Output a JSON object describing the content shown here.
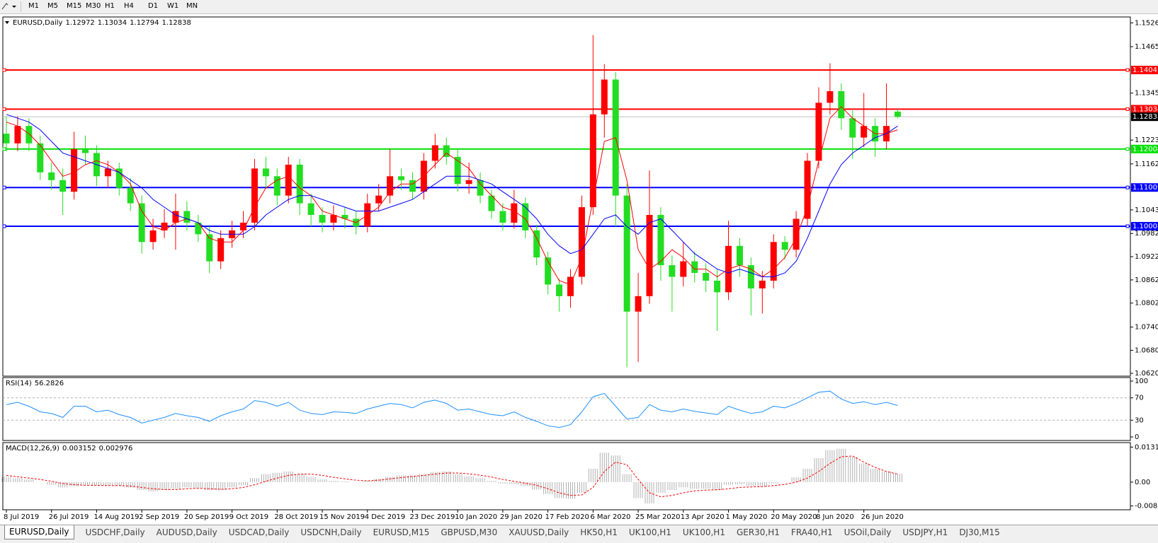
{
  "toolbar": {
    "timeframes": [
      "M1",
      "M5",
      "M15",
      "M30",
      "H1",
      "H4",
      "D1",
      "W1",
      "MN"
    ]
  },
  "chart_data": [
    {
      "type": "candlestick",
      "title": "EURUSD,Daily",
      "categories": [
        "8 Jul 2019",
        null,
        null,
        null,
        "26 Jul 2019",
        null,
        null,
        null,
        "14 Aug 2019",
        null,
        null,
        null,
        "2 Sep 2019",
        null,
        null,
        null,
        "20 Sep 2019",
        null,
        null,
        null,
        "9 Oct 2019",
        null,
        null,
        null,
        "28 Oct 2019",
        null,
        null,
        null,
        "15 Nov 2019",
        null,
        null,
        null,
        "4 Dec 2019",
        null,
        null,
        null,
        "23 Dec 2019",
        null,
        null,
        null,
        "10 Jan 2020",
        null,
        null,
        null,
        "29 Jan 2020",
        null,
        null,
        null,
        "17 Feb 2020",
        null,
        null,
        null,
        "6 Mar 2020",
        null,
        null,
        null,
        "25 Mar 2020",
        null,
        null,
        null,
        "13 Apr 2020",
        null,
        null,
        null,
        "1 May 2020",
        null,
        null,
        null,
        "20 May 2020",
        null,
        null,
        null,
        "8 Jun 2020",
        null,
        null,
        null,
        "26 Jun 2020",
        null,
        null,
        null
      ],
      "open": [
        1.124,
        1.1215,
        1.126,
        1.1215,
        1.114,
        1.112,
        1.109,
        1.12,
        1.119,
        1.113,
        1.115,
        1.11,
        1.106,
        1.096,
        1.099,
        1.101,
        1.104,
        1.101,
        1.098,
        1.091,
        1.097,
        1.099,
        1.101,
        1.115,
        1.113,
        1.108,
        1.116,
        1.106,
        1.103,
        1.101,
        1.103,
        1.102,
        1.1,
        1.106,
        1.108,
        1.113,
        1.112,
        1.109,
        1.117,
        1.121,
        1.118,
        1.111,
        1.112,
        1.108,
        1.104,
        1.101,
        1.106,
        1.099,
        1.092,
        1.085,
        1.082,
        1.087,
        1.105,
        1.129,
        1.138,
        1.108,
        1.078,
        1.082,
        1.103,
        1.09,
        1.087,
        1.091,
        1.088,
        1.086,
        1.083,
        1.095,
        1.09,
        1.084,
        1.086,
        1.096,
        1.094,
        1.102,
        1.117,
        1.132,
        1.135,
        1.128,
        1.123,
        1.126,
        1.122,
        1.12972
      ],
      "high": [
        1.1285,
        1.1285,
        1.128,
        1.1235,
        1.1165,
        1.115,
        1.1245,
        1.1235,
        1.121,
        1.117,
        1.1165,
        1.1125,
        1.108,
        1.102,
        1.1045,
        1.1085,
        1.1065,
        1.103,
        1.1,
        1.099,
        1.1015,
        1.104,
        1.1175,
        1.118,
        1.115,
        1.118,
        1.1175,
        1.1085,
        1.105,
        1.1055,
        1.105,
        1.104,
        1.1085,
        1.111,
        1.12,
        1.115,
        1.114,
        1.119,
        1.124,
        1.123,
        1.12,
        1.1165,
        1.114,
        1.1095,
        1.106,
        1.1095,
        1.1075,
        1.1005,
        1.0935,
        1.0865,
        1.089,
        1.108,
        1.1495,
        1.142,
        1.14,
        1.111,
        1.088,
        1.1145,
        1.105,
        1.0925,
        1.096,
        1.0935,
        1.0905,
        1.089,
        1.1015,
        1.097,
        1.092,
        1.0885,
        1.098,
        1.0975,
        1.104,
        1.119,
        1.136,
        1.1422,
        1.137,
        1.13,
        1.1345,
        1.128,
        1.137,
        1.13034
      ],
      "low": [
        1.1195,
        1.1195,
        1.1195,
        1.112,
        1.1095,
        1.103,
        1.107,
        1.116,
        1.1105,
        1.11,
        1.108,
        1.104,
        1.093,
        1.094,
        1.097,
        1.094,
        1.099,
        1.096,
        1.088,
        1.089,
        1.0945,
        1.097,
        1.099,
        1.11,
        1.1055,
        1.106,
        1.103,
        1.1,
        1.0985,
        1.099,
        1.0995,
        1.098,
        1.0985,
        1.104,
        1.106,
        1.1095,
        1.107,
        1.107,
        1.115,
        1.116,
        1.109,
        1.1085,
        1.106,
        1.102,
        1.099,
        1.0995,
        1.097,
        1.09,
        1.0825,
        1.078,
        1.079,
        1.085,
        1.103,
        1.123,
        1.1,
        1.0636,
        1.065,
        1.08,
        1.086,
        1.078,
        1.0845,
        1.0855,
        1.083,
        1.073,
        1.081,
        1.087,
        1.077,
        1.0775,
        1.084,
        1.0915,
        1.092,
        1.1,
        1.115,
        1.129,
        1.125,
        1.1175,
        1.1205,
        1.118,
        1.12,
        1.12794
      ],
      "close": [
        1.1215,
        1.126,
        1.1215,
        1.114,
        1.112,
        1.109,
        1.12,
        1.119,
        1.113,
        1.115,
        1.11,
        1.106,
        1.096,
        1.099,
        1.101,
        1.104,
        1.101,
        1.098,
        1.091,
        1.097,
        1.099,
        1.101,
        1.115,
        1.113,
        1.108,
        1.116,
        1.106,
        1.103,
        1.101,
        1.103,
        1.102,
        1.1,
        1.106,
        1.108,
        1.113,
        1.112,
        1.109,
        1.117,
        1.121,
        1.118,
        1.111,
        1.112,
        1.108,
        1.104,
        1.101,
        1.106,
        1.099,
        1.092,
        1.085,
        1.082,
        1.087,
        1.105,
        1.129,
        1.138,
        1.108,
        1.078,
        1.082,
        1.103,
        1.09,
        1.087,
        1.091,
        1.088,
        1.086,
        1.083,
        1.095,
        1.09,
        1.084,
        1.086,
        1.096,
        1.094,
        1.102,
        1.117,
        1.132,
        1.135,
        1.128,
        1.123,
        1.126,
        1.122,
        1.126,
        1.12838
      ],
      "up_color": "#ff0000",
      "down_color": "#22dd22",
      "overlays": [
        {
          "color": "#ff0000",
          "values": [
            1.127,
            1.126,
            1.124,
            1.121,
            1.117,
            1.113,
            1.114,
            1.116,
            1.117,
            1.116,
            1.114,
            1.111,
            1.104,
            1.1,
            1.099,
            1.101,
            1.102,
            1.101,
            1.097,
            1.096,
            1.096,
            1.099,
            1.105,
            1.11,
            1.112,
            1.113,
            1.11,
            1.108,
            1.104,
            1.103,
            1.102,
            1.101,
            1.103,
            1.105,
            1.109,
            1.111,
            1.111,
            1.113,
            1.116,
            1.119,
            1.117,
            1.115,
            1.111,
            1.108,
            1.105,
            1.104,
            1.102,
            1.097,
            1.091,
            1.086,
            1.085,
            1.092,
            1.107,
            1.122,
            1.123,
            1.112,
            1.094,
            1.089,
            1.091,
            1.094,
            1.092,
            1.089,
            1.089,
            1.087,
            1.089,
            1.09,
            1.089,
            1.087,
            1.089,
            1.092,
            1.097,
            1.105,
            1.117,
            1.128,
            1.131,
            1.128,
            1.126,
            1.124,
            1.124,
            1.125
          ]
        },
        {
          "color": "#0000ff",
          "values": [
            1.129,
            1.128,
            1.127,
            1.125,
            1.122,
            1.119,
            1.118,
            1.117,
            1.116,
            1.115,
            1.114,
            1.112,
            1.11,
            1.107,
            1.105,
            1.103,
            1.102,
            1.101,
            1.099,
            1.098,
            1.098,
            1.098,
            1.1,
            1.103,
            1.105,
            1.107,
            1.108,
            1.108,
            1.107,
            1.106,
            1.105,
            1.104,
            1.104,
            1.104,
            1.105,
            1.106,
            1.107,
            1.109,
            1.111,
            1.113,
            1.113,
            1.113,
            1.112,
            1.111,
            1.109,
            1.107,
            1.105,
            1.102,
            1.098,
            1.095,
            1.093,
            1.094,
            1.098,
            1.102,
            1.103,
            1.1,
            1.098,
            1.101,
            1.102,
            1.099,
            1.096,
            1.093,
            1.091,
            1.089,
            1.088,
            1.089,
            1.088,
            1.087,
            1.087,
            1.088,
            1.091,
            1.097,
            1.104,
            1.111,
            1.116,
            1.119,
            1.121,
            1.123,
            1.124,
            1.126
          ]
        }
      ],
      "hlines": [
        {
          "value": 1.14047,
          "color": "#ff0000"
        },
        {
          "value": 1.13034,
          "color": "#ff0000"
        },
        {
          "value": 1.12004,
          "color": "#00e000"
        },
        {
          "value": 1.11009,
          "color": "#0000ff"
        },
        {
          "value": 1.10008,
          "color": "#0000ff"
        }
      ],
      "current_price": 1.12838,
      "ylim": [
        1.0615,
        1.154
      ],
      "yticks": [
        1.15265,
        {
          "value": 1.1465,
          "label": "1.14650"
        },
        {
          "value": 1.1345,
          "label": "1.13450"
        },
        1.12235,
        {
          "value": 1.1162,
          "label": "1.11620"
        },
        {
          "value": 1.1043,
          "label": "1.10430"
        },
        {
          "value": 1.0982,
          "label": "1.09820"
        },
        {
          "value": 1.0922,
          "label": "1.09220"
        },
        {
          "value": 1.0862,
          "label": "1.08620"
        },
        {
          "value": 1.0802,
          "label": "1.08020"
        },
        {
          "value": 1.074,
          "label": "1.07400"
        },
        {
          "value": 1.068,
          "label": "1.06800"
        },
        1.06205
      ]
    },
    {
      "type": "line",
      "title": "RSI(14)",
      "color": "#1e90ff",
      "values": [
        58,
        62,
        55,
        45,
        42,
        35,
        55,
        55,
        45,
        48,
        40,
        35,
        25,
        30,
        35,
        42,
        38,
        35,
        28,
        38,
        45,
        50,
        65,
        62,
        55,
        62,
        48,
        42,
        40,
        45,
        44,
        42,
        50,
        55,
        60,
        58,
        52,
        62,
        66,
        60,
        48,
        50,
        45,
        40,
        38,
        45,
        35,
        28,
        20,
        17,
        22,
        45,
        72,
        78,
        55,
        32,
        35,
        58,
        48,
        45,
        50,
        46,
        43,
        40,
        55,
        48,
        42,
        45,
        55,
        52,
        60,
        70,
        80,
        82,
        68,
        60,
        63,
        58,
        62,
        56.2826
      ],
      "levels": [
        70,
        30
      ],
      "ylim": [
        0,
        100
      ],
      "yticks": [
        100,
        70,
        30,
        0
      ]
    },
    {
      "type": "macd",
      "title": "MACD(12,26,9)",
      "color": "#b0b0b0",
      "signal_color": "#ff0000",
      "values": [
        0.002,
        0.0015,
        0.001,
        0,
        -0.001,
        -0.002,
        -0.0015,
        -0.001,
        -0.0012,
        -0.0013,
        -0.0015,
        -0.002,
        -0.003,
        -0.0035,
        -0.003,
        -0.0025,
        -0.002,
        -0.0022,
        -0.003,
        -0.003,
        -0.002,
        -0.0012,
        0.0015,
        0.003,
        0.0035,
        0.004,
        0.003,
        0.002,
        0.001,
        0.0005,
        0.0003,
        0,
        0.0005,
        0.0012,
        0.002,
        0.0025,
        0.0025,
        0.003,
        0.0038,
        0.004,
        0.003,
        0.0022,
        0.0015,
        0.0005,
        -0.0005,
        -0.0008,
        -0.0015,
        -0.0028,
        -0.0045,
        -0.006,
        -0.0062,
        -0.004,
        0.005,
        0.011,
        0.01,
        0.003,
        -0.006,
        -0.008,
        -0.004,
        -0.003,
        -0.002,
        -0.0025,
        -0.0025,
        -0.003,
        -0.001,
        -0.0008,
        -0.0015,
        -0.0018,
        -0.0005,
        0,
        0.0018,
        0.005,
        0.009,
        0.012,
        0.0125,
        0.0095,
        0.007,
        0.005,
        0.004,
        0.003152
      ],
      "signal": [
        0.0025,
        0.002,
        0.0015,
        0.001,
        0.0003,
        -0.0005,
        -0.001,
        -0.0012,
        -0.0012,
        -0.0013,
        -0.0013,
        -0.0015,
        -0.002,
        -0.0025,
        -0.0028,
        -0.0028,
        -0.0025,
        -0.0023,
        -0.0025,
        -0.0027,
        -0.0025,
        -0.002,
        -0.001,
        0.0003,
        0.0015,
        0.0025,
        0.003,
        0.003,
        0.0025,
        0.0018,
        0.0012,
        0.0007,
        0.0005,
        0.0007,
        0.0012,
        0.0017,
        0.0021,
        0.0025,
        0.003,
        0.0034,
        0.0034,
        0.0031,
        0.0026,
        0.0019,
        0.001,
        0.0003,
        -0.0004,
        -0.0012,
        -0.0025,
        -0.004,
        -0.005,
        -0.0048,
        -0.002,
        0.004,
        0.0075,
        0.0065,
        0.001,
        -0.004,
        -0.0055,
        -0.005,
        -0.004,
        -0.0033,
        -0.003,
        -0.0029,
        -0.0025,
        -0.002,
        -0.0018,
        -0.0017,
        -0.0013,
        -0.0009,
        0,
        0.0015,
        0.004,
        0.007,
        0.0095,
        0.0098,
        0.0075,
        0.0055,
        0.004,
        0.002976
      ],
      "ylim": [
        -0.0101,
        0.0148
      ],
      "yticks": [
        0.01312,
        {
          "value": 0,
          "label": "0.00"
        },
        -0.00893
      ]
    }
  ],
  "tabs": {
    "items": [
      "EURUSD,Daily",
      "USDCHF,Daily",
      "AUDUSD,Daily",
      "USDCAD,Daily",
      "USDCNH,Daily",
      "EURUSD,M15",
      "GBPUSD,M30",
      "XAUUSD,Daily",
      "HK50,H1",
      "UK100,H1",
      "UK100,H1",
      "GER30,H1",
      "FRA40,H1",
      "USOil,Daily",
      "USDJPY,H1",
      "DJ30,M15"
    ],
    "active": 0
  }
}
